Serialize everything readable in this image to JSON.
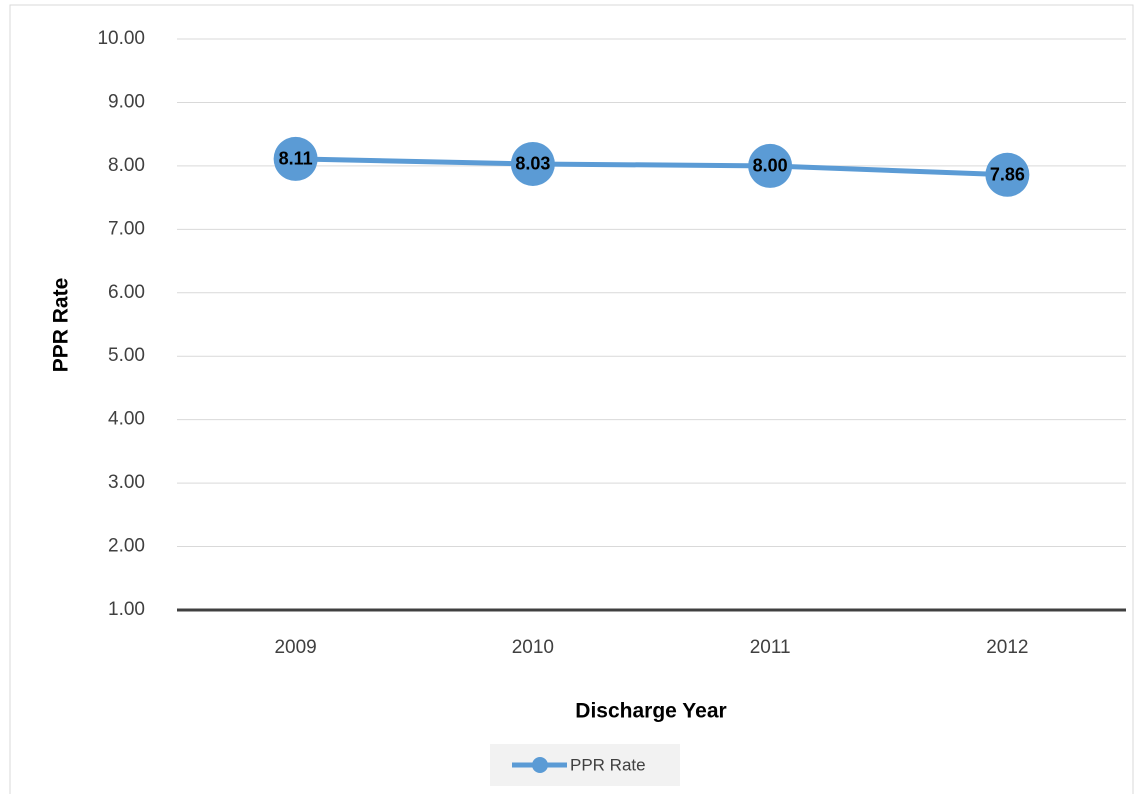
{
  "chart_data": {
    "type": "line",
    "y_label": "PPR Rate",
    "x_label": "Discharge Year",
    "categories": [
      "2009",
      "2010",
      "2011",
      "2012"
    ],
    "series": [
      {
        "name": "PPR Rate",
        "color": "#5b9bd5",
        "values": [
          8.11,
          8.03,
          8.0,
          7.86
        ],
        "value_labels": [
          "8.11",
          "8.03",
          "8.00",
          "7.86"
        ]
      }
    ],
    "ylim": [
      1,
      10
    ],
    "yticks": [
      {
        "value": 1,
        "label": "1.00"
      },
      {
        "value": 2,
        "label": "2.00"
      },
      {
        "value": 3,
        "label": "3.00"
      },
      {
        "value": 4,
        "label": "4.00"
      },
      {
        "value": 5,
        "label": "5.00"
      },
      {
        "value": 6,
        "label": "6.00"
      },
      {
        "value": 7,
        "label": "7.00"
      },
      {
        "value": 8,
        "label": "8.00"
      },
      {
        "value": 9,
        "label": "9.00"
      },
      {
        "value": 10,
        "label": "10.00"
      }
    ],
    "grid": true,
    "legend": "bottom"
  }
}
